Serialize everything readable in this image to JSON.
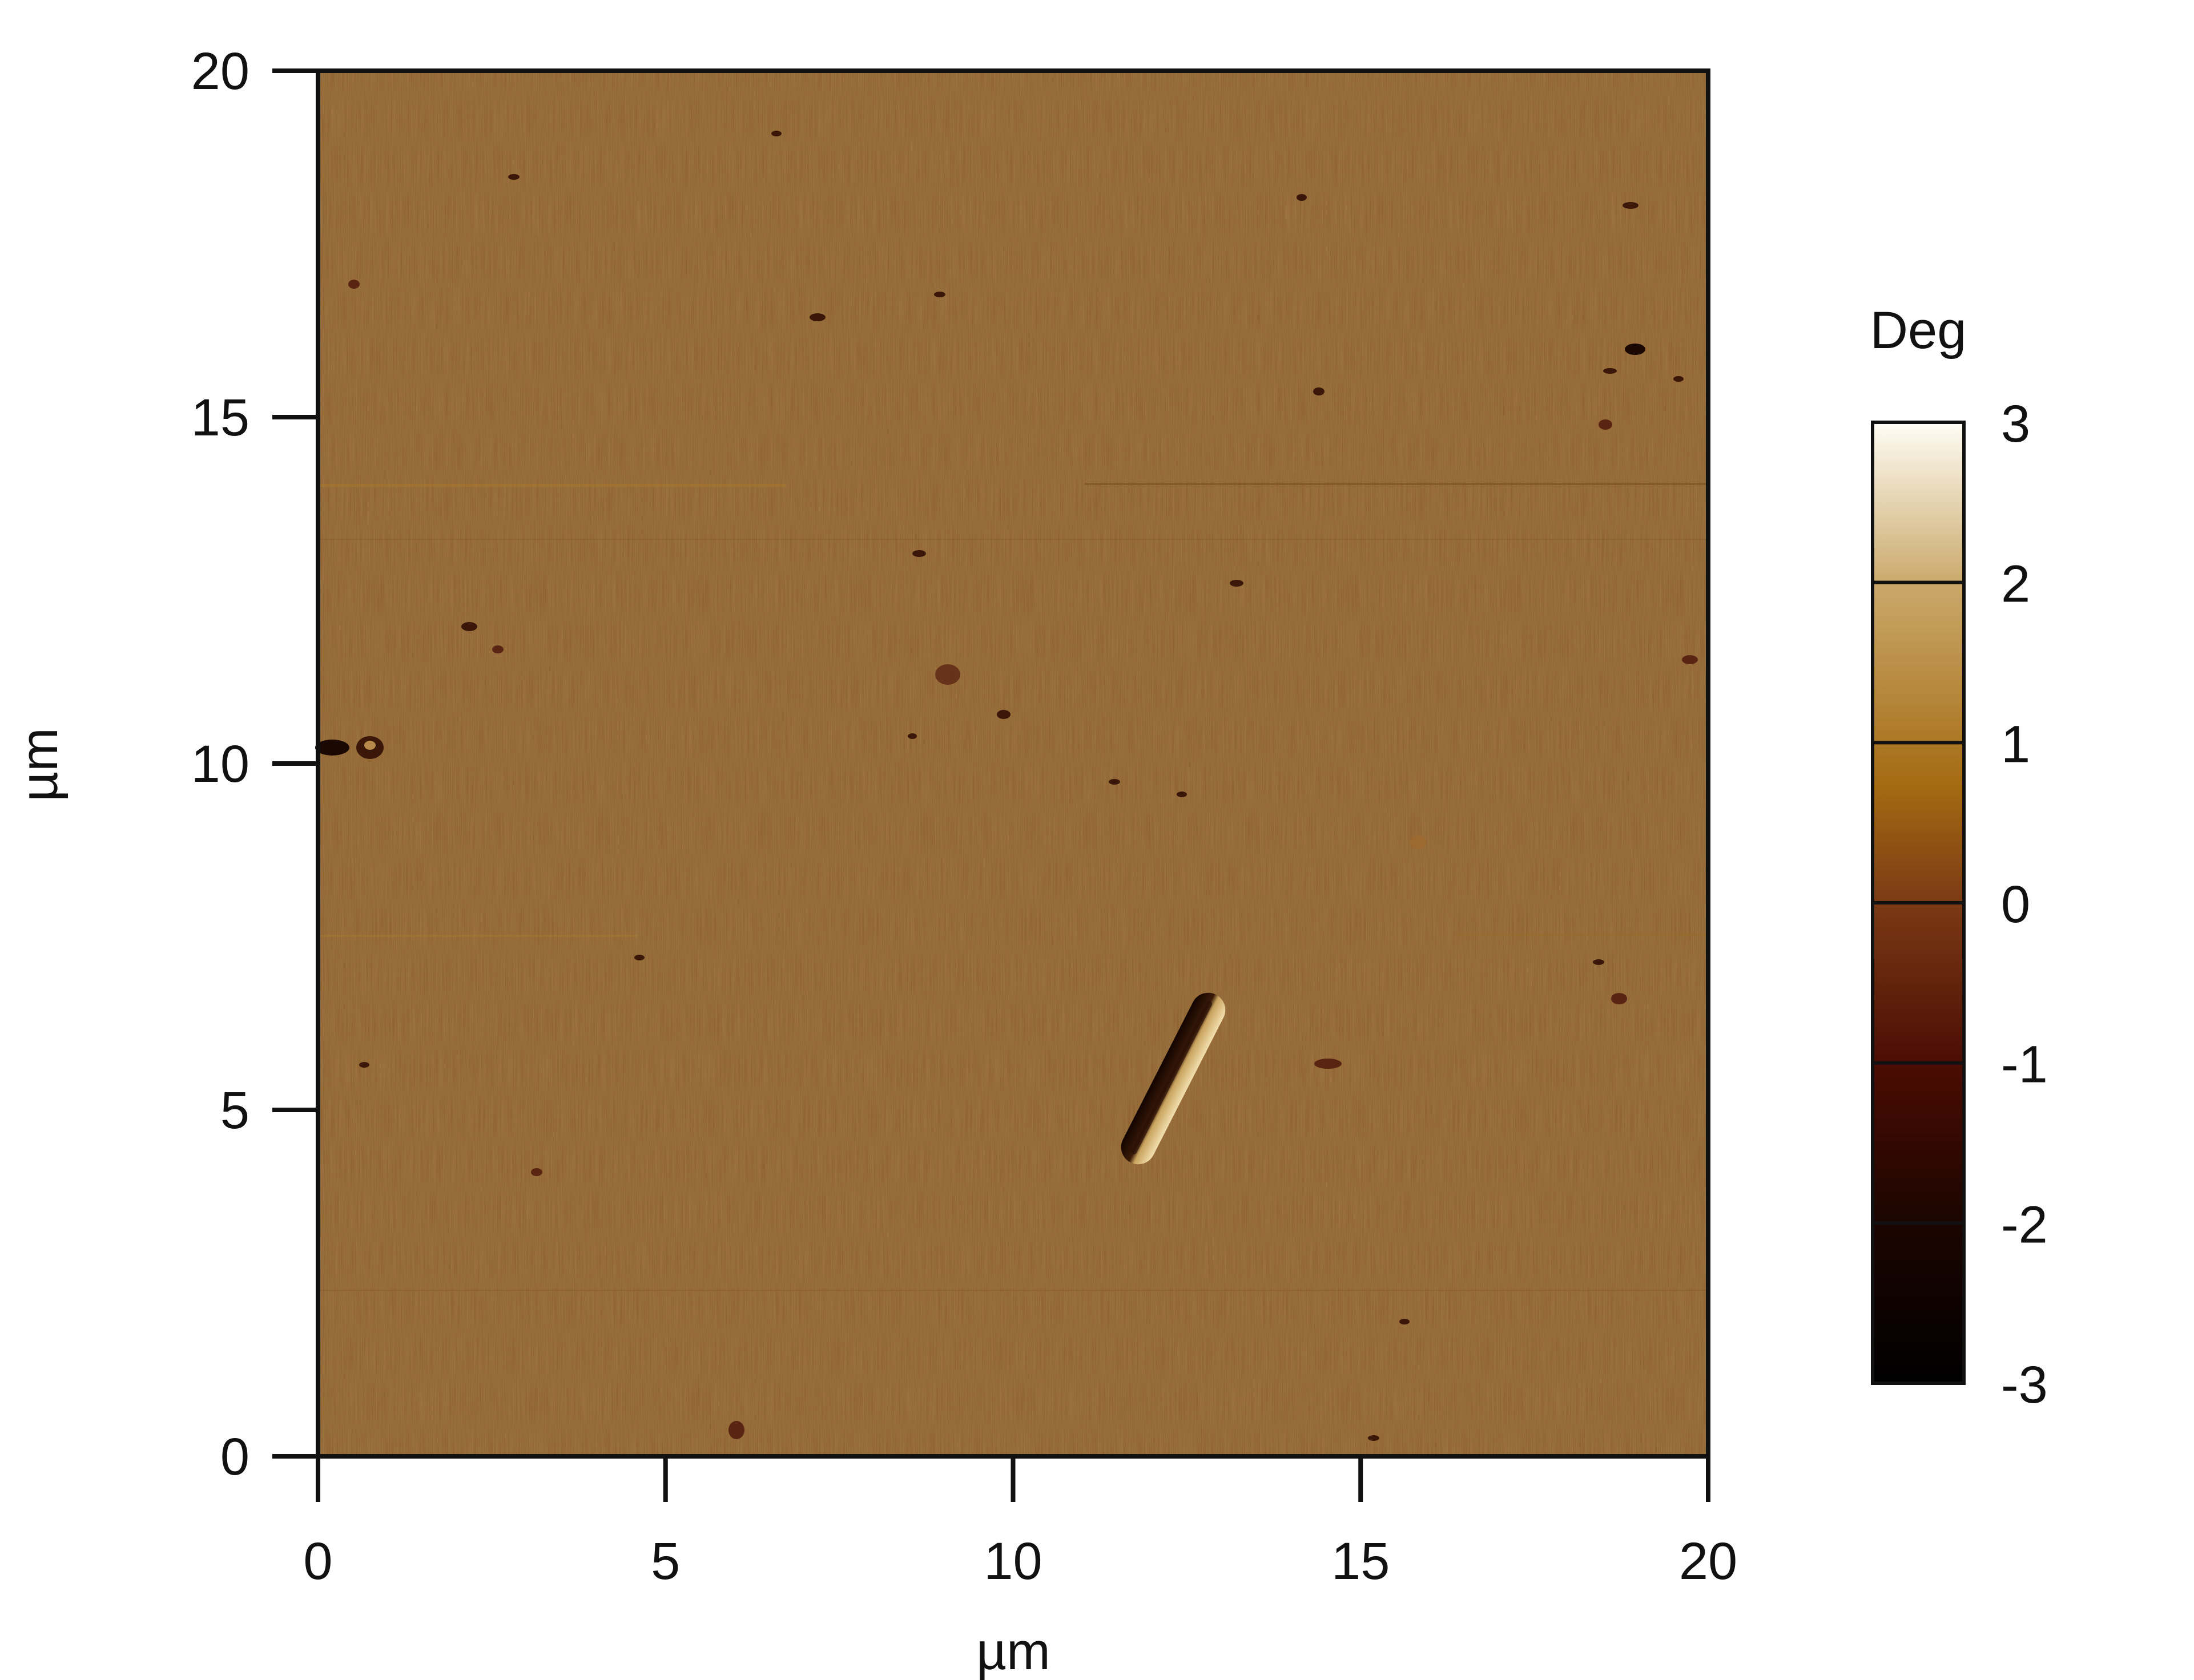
{
  "image": {
    "type": "heatmap",
    "description_kind": "AFM phase image",
    "x_axis": {
      "label": "µm",
      "range": [
        0,
        20
      ],
      "ticks": [
        0,
        5,
        10,
        15,
        20
      ]
    },
    "y_axis": {
      "label": "µm",
      "range": [
        0,
        20
      ],
      "ticks": [
        0,
        5,
        10,
        15,
        20
      ]
    },
    "colorbar": {
      "unit": "Deg",
      "range": [
        -3,
        3
      ],
      "ticks": [
        3,
        2,
        1,
        0,
        -1,
        -2,
        -3
      ],
      "colors": [
        "#000000",
        "#1c0500",
        "#4a0c03",
        "#7a3a15",
        "#a36a12",
        "#caa86a",
        "#fffdf5"
      ]
    },
    "background_color": "#8a5a24",
    "feature": {
      "kind": "elongated particle",
      "start_um": [
        11.8,
        4.1
      ],
      "end_um": [
        13.1,
        6.6
      ]
    }
  }
}
